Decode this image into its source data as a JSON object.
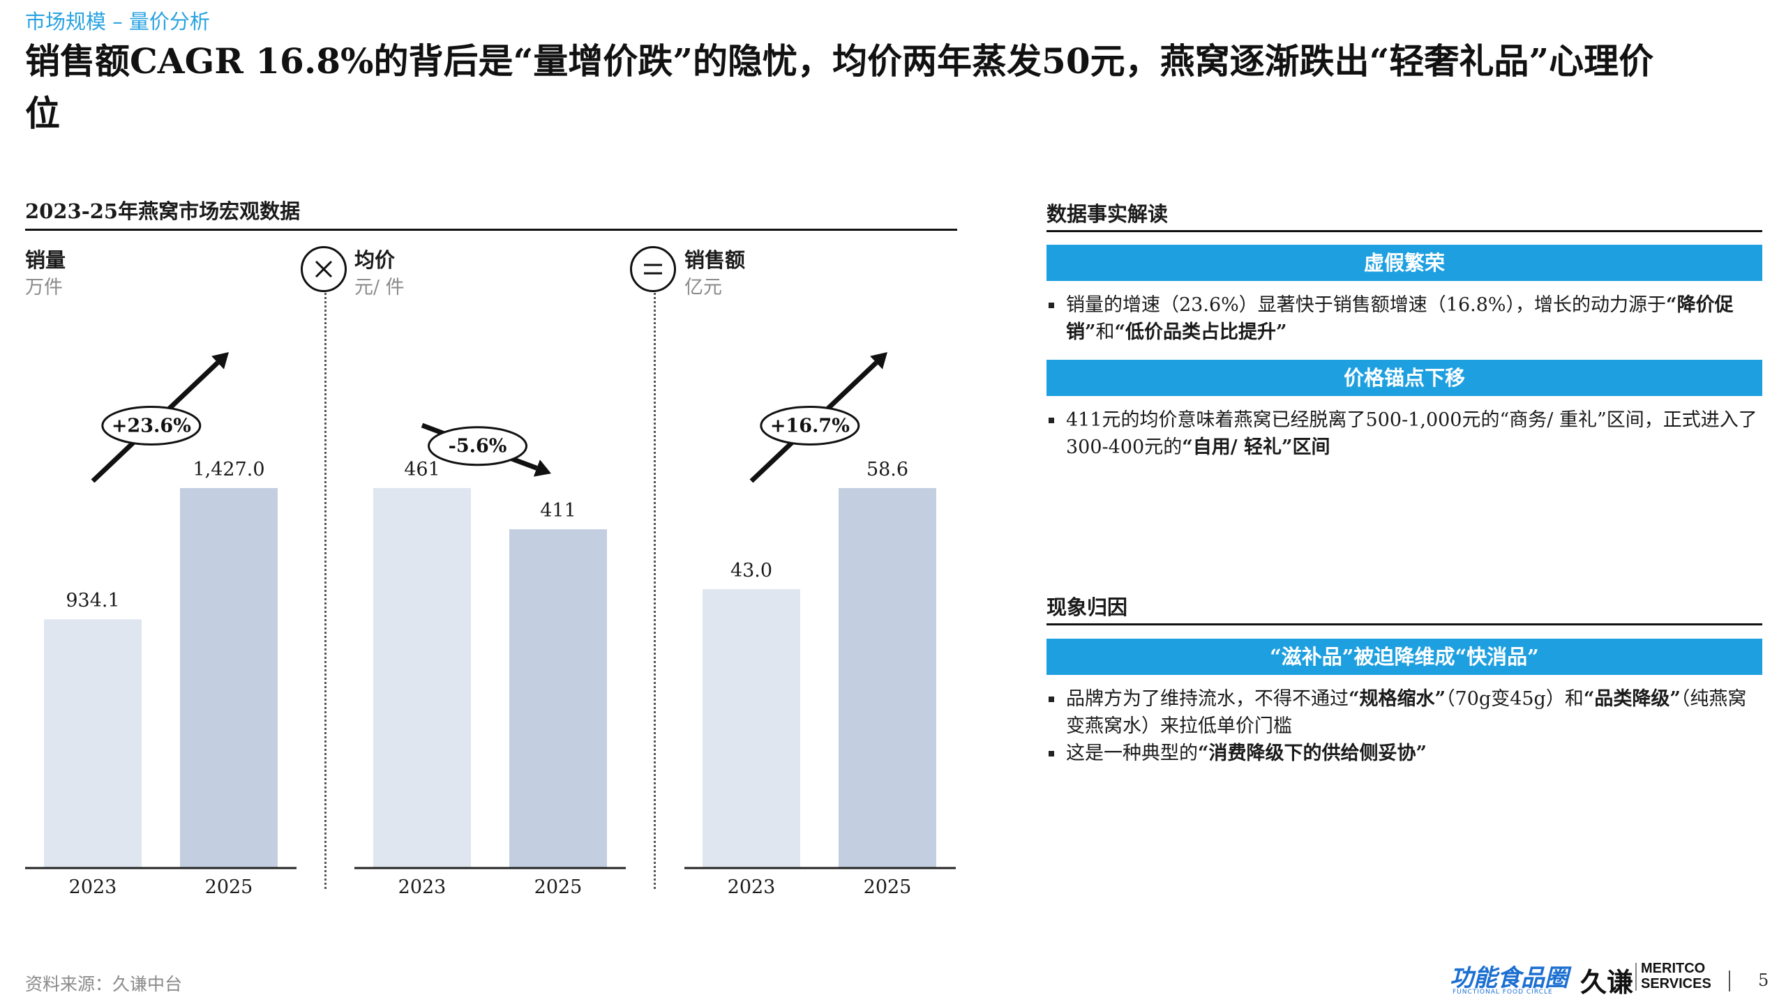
{
  "section_tag": "市场规模 – 量价分析",
  "headline": "销售额CAGR 16.8%的背后是“量增价跌”的隐忧，均价两年蒸发50元，燕窝逐渐跌出“轻奢礼品”心理价位",
  "left_panel": {
    "title": "2023-25年燕窝市场宏观数据",
    "operators": {
      "multiply": "×",
      "equals": "="
    }
  },
  "chart_data": [
    {
      "type": "bar",
      "title": "销量",
      "unit": "万件",
      "categories": [
        "2023",
        "2025"
      ],
      "values": [
        934.1,
        1427.0
      ],
      "value_labels": [
        "934.1",
        "1,427.0"
      ],
      "change_label": "+23.6%",
      "trend": "up",
      "colors": [
        "#dfe6f0",
        "#c3cfe1"
      ]
    },
    {
      "type": "bar",
      "title": "均价",
      "unit": "元/ 件",
      "categories": [
        "2023",
        "2025"
      ],
      "values": [
        461,
        411
      ],
      "value_labels": [
        "461",
        "411"
      ],
      "change_label": "-5.6%",
      "trend": "down",
      "colors": [
        "#dfe6f0",
        "#c3cfe1"
      ]
    },
    {
      "type": "bar",
      "title": "销售额",
      "unit": "亿元",
      "categories": [
        "2023",
        "2025"
      ],
      "values": [
        43.0,
        58.6
      ],
      "value_labels": [
        "43.0",
        "58.6"
      ],
      "change_label": "+16.7%",
      "trend": "up",
      "colors": [
        "#dfe6f0",
        "#c3cfe1"
      ]
    }
  ],
  "right_panel": {
    "facts_title": "数据事实解读",
    "band1": "虚假繁荣",
    "band1_text": "销量的增速（23.6%）显著快于销售额增速（16.8%），增长的动力源于",
    "band1_bold": "“降价促销”",
    "band1_mid": "和",
    "band1_bold2": "“低价品类占比提升”",
    "band2": "价格锚点下移",
    "band2_text": "411元的均价意味着燕窝已经脱离了500-1,000元的“商务/ 重礼”区间，正式进入了300-400元的",
    "band2_bold": "“自用/ 轻礼”区间",
    "cause_title": "现象归因",
    "band3": "“滋补品”被迫降维成“快消品”",
    "band3_text1": "品牌方为了维持流水，不得不通过",
    "band3_bold1": "“规格缩水”",
    "band3_text2": "（70g变45g）和",
    "band3_bold2": "“品类降级”",
    "band3_text3": "（纯燕窝变燕窝水）来拉低单价门槛",
    "band3_text4": "这是一种典型的",
    "band3_bold3": "“消费降级下的供给侧妥协”"
  },
  "footer": {
    "source": "资料来源：久谦中台",
    "logo1": "功能食品圈",
    "logo1_sub": "FUNCTIONAL FOOD CIRCLE",
    "logo2_cn": "久谦",
    "logo2_en1": "MERITCO",
    "logo2_en2": "SERVICES",
    "page": "5"
  }
}
